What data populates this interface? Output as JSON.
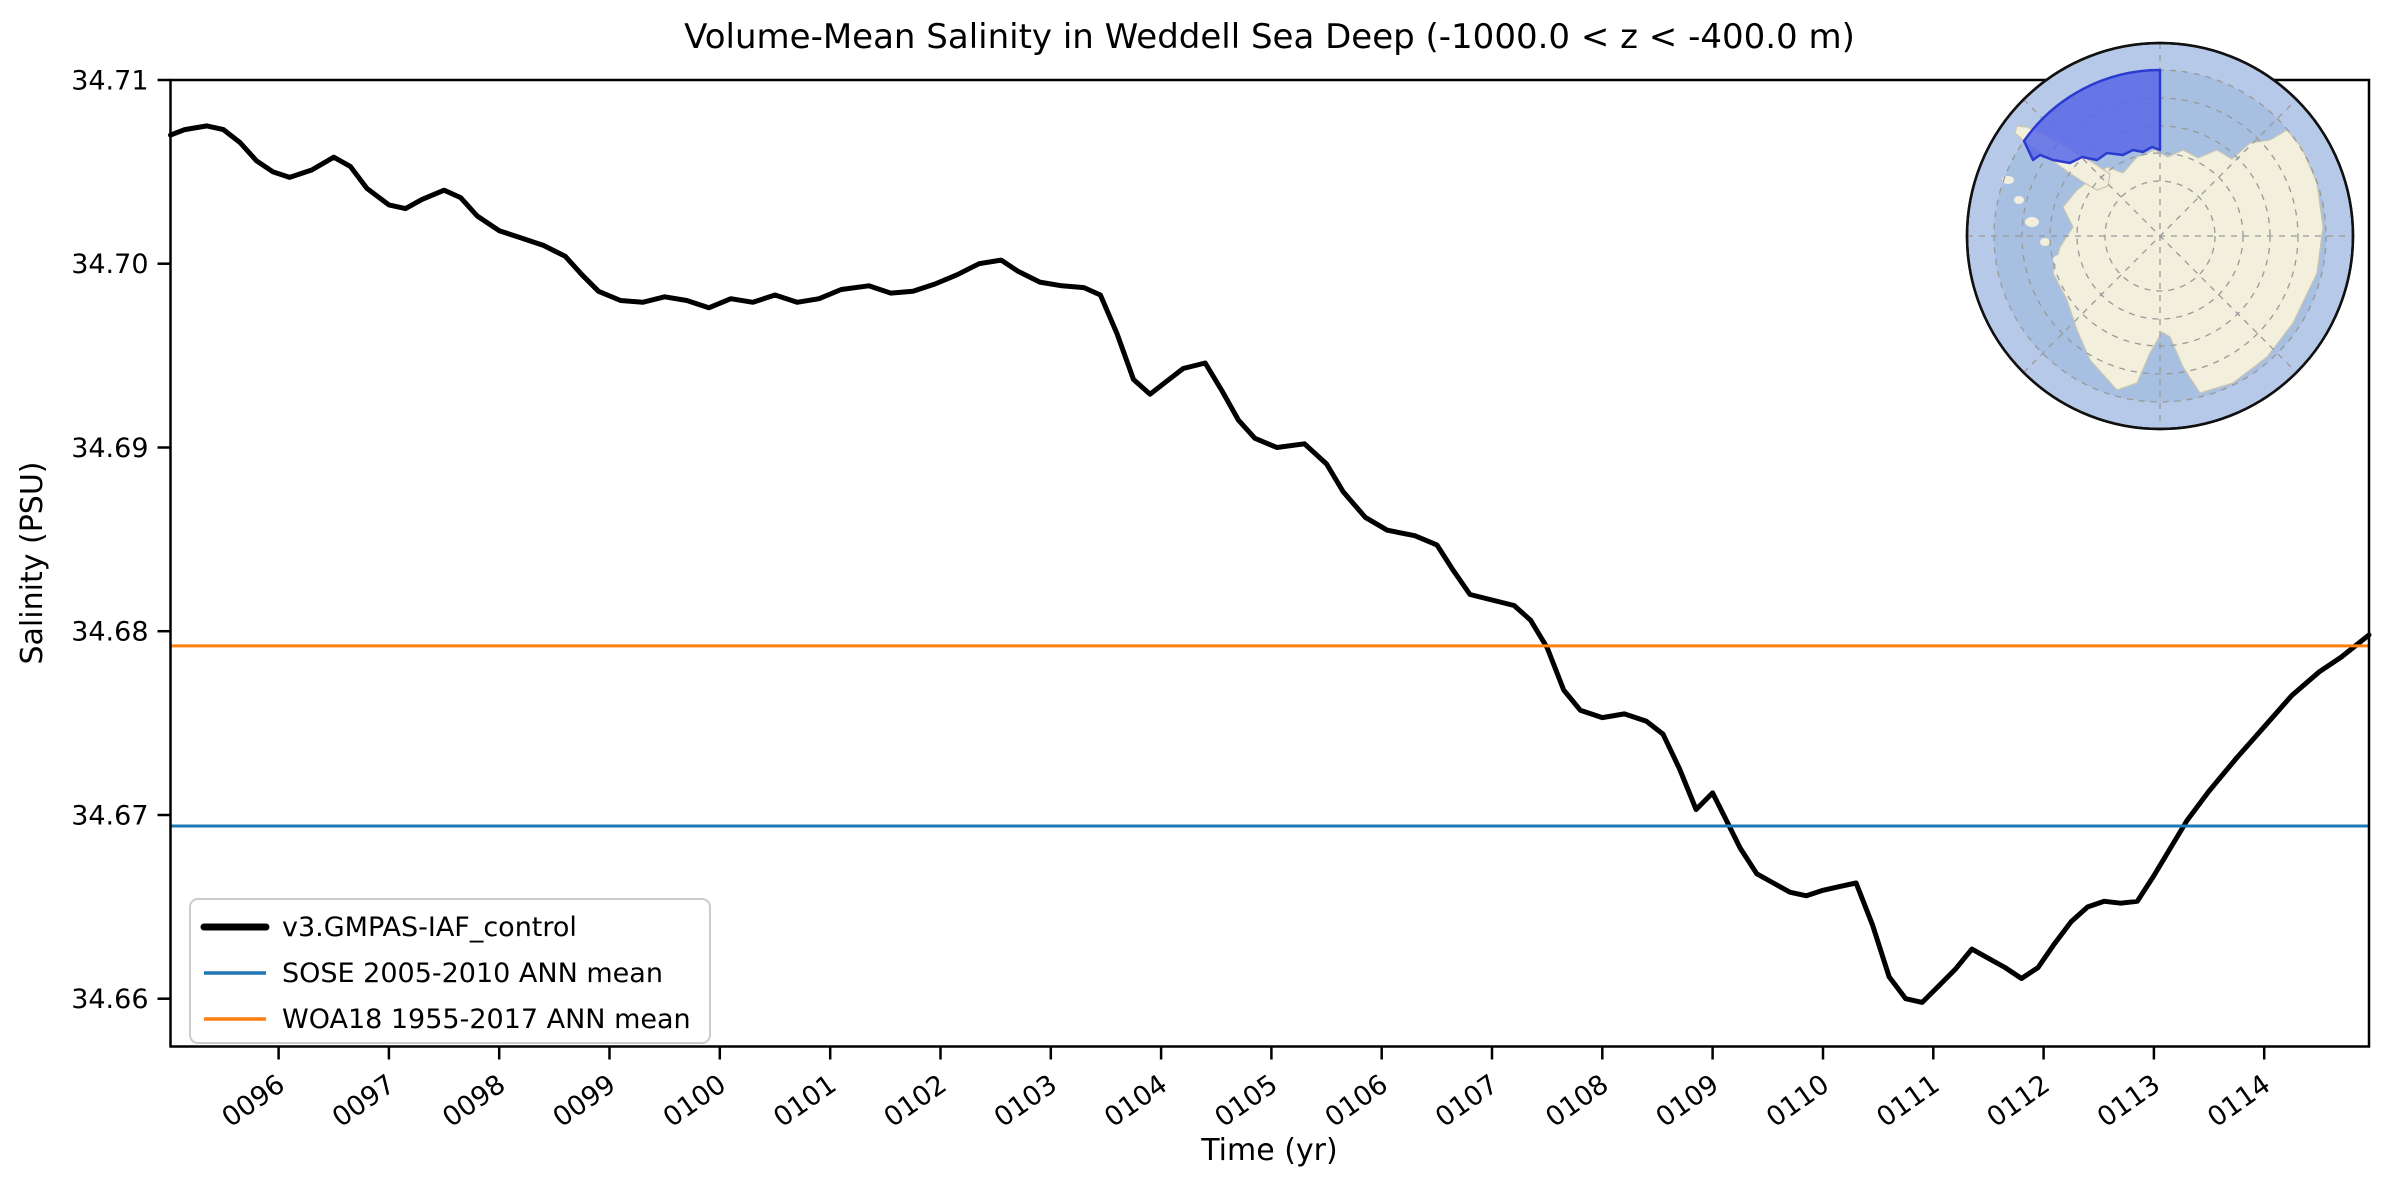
{
  "chart_data": {
    "type": "line",
    "title": "Volume-Mean Salinity in Weddell Sea Deep (-1000.0 < z < -400.0 m)",
    "xlabel": "Time (yr)",
    "ylabel": "Salinity (PSU)",
    "xlim": [
      95.02,
      114.95
    ],
    "ylim": [
      34.6574,
      34.71
    ],
    "grid": false,
    "legend_position": "lower left",
    "x_ticks": [
      {
        "value": 96,
        "label": "0096"
      },
      {
        "value": 97,
        "label": "0097"
      },
      {
        "value": 98,
        "label": "0098"
      },
      {
        "value": 99,
        "label": "0099"
      },
      {
        "value": 100,
        "label": "0100"
      },
      {
        "value": 101,
        "label": "0101"
      },
      {
        "value": 102,
        "label": "0102"
      },
      {
        "value": 103,
        "label": "0103"
      },
      {
        "value": 104,
        "label": "0104"
      },
      {
        "value": 105,
        "label": "0105"
      },
      {
        "value": 106,
        "label": "0106"
      },
      {
        "value": 107,
        "label": "0107"
      },
      {
        "value": 108,
        "label": "0108"
      },
      {
        "value": 109,
        "label": "0109"
      },
      {
        "value": 110,
        "label": "0110"
      },
      {
        "value": 111,
        "label": "0111"
      },
      {
        "value": 112,
        "label": "0112"
      },
      {
        "value": 113,
        "label": "0113"
      },
      {
        "value": 114,
        "label": "0114"
      }
    ],
    "y_ticks": [
      {
        "value": 34.66,
        "label": "34.66"
      },
      {
        "value": 34.67,
        "label": "34.67"
      },
      {
        "value": 34.68,
        "label": "34.68"
      },
      {
        "value": 34.69,
        "label": "34.69"
      },
      {
        "value": 34.7,
        "label": "34.70"
      },
      {
        "value": 34.71,
        "label": "34.71"
      }
    ],
    "series": [
      {
        "name": "v3.GMPAS-IAF_control",
        "type": "line",
        "color": "#000000",
        "points": [
          [
            95.02,
            34.707
          ],
          [
            95.15,
            34.7073
          ],
          [
            95.35,
            34.7075
          ],
          [
            95.5,
            34.7073
          ],
          [
            95.65,
            34.7066
          ],
          [
            95.8,
            34.7056
          ],
          [
            95.95,
            34.705
          ],
          [
            96.1,
            34.7047
          ],
          [
            96.3,
            34.7051
          ],
          [
            96.5,
            34.7058
          ],
          [
            96.65,
            34.7053
          ],
          [
            96.8,
            34.7041
          ],
          [
            97.0,
            34.7032
          ],
          [
            97.15,
            34.703
          ],
          [
            97.3,
            34.7035
          ],
          [
            97.5,
            34.704
          ],
          [
            97.65,
            34.7036
          ],
          [
            97.8,
            34.7026
          ],
          [
            98.0,
            34.7018
          ],
          [
            98.2,
            34.7014
          ],
          [
            98.4,
            34.701
          ],
          [
            98.6,
            34.7004
          ],
          [
            98.75,
            34.6994
          ],
          [
            98.9,
            34.6985
          ],
          [
            99.1,
            34.698
          ],
          [
            99.3,
            34.6979
          ],
          [
            99.5,
            34.6982
          ],
          [
            99.7,
            34.698
          ],
          [
            99.9,
            34.6976
          ],
          [
            100.1,
            34.6981
          ],
          [
            100.3,
            34.6979
          ],
          [
            100.5,
            34.6983
          ],
          [
            100.7,
            34.6979
          ],
          [
            100.9,
            34.6981
          ],
          [
            101.1,
            34.6986
          ],
          [
            101.35,
            34.6988
          ],
          [
            101.55,
            34.6984
          ],
          [
            101.75,
            34.6985
          ],
          [
            101.95,
            34.6989
          ],
          [
            102.15,
            34.6994
          ],
          [
            102.35,
            34.7
          ],
          [
            102.55,
            34.7002
          ],
          [
            102.7,
            34.6996
          ],
          [
            102.9,
            34.699
          ],
          [
            103.1,
            34.6988
          ],
          [
            103.3,
            34.6987
          ],
          [
            103.45,
            34.6983
          ],
          [
            103.6,
            34.6962
          ],
          [
            103.75,
            34.6937
          ],
          [
            103.9,
            34.6929
          ],
          [
            104.05,
            34.6936
          ],
          [
            104.2,
            34.6943
          ],
          [
            104.4,
            34.6946
          ],
          [
            104.55,
            34.6931
          ],
          [
            104.7,
            34.6915
          ],
          [
            104.85,
            34.6905
          ],
          [
            105.05,
            34.69
          ],
          [
            105.3,
            34.6902
          ],
          [
            105.5,
            34.6891
          ],
          [
            105.65,
            34.6876
          ],
          [
            105.85,
            34.6862
          ],
          [
            106.05,
            34.6855
          ],
          [
            106.3,
            34.6852
          ],
          [
            106.5,
            34.6847
          ],
          [
            106.65,
            34.6833
          ],
          [
            106.8,
            34.682
          ],
          [
            107.0,
            34.6817
          ],
          [
            107.2,
            34.6814
          ],
          [
            107.35,
            34.6806
          ],
          [
            107.5,
            34.6791
          ],
          [
            107.65,
            34.6768
          ],
          [
            107.8,
            34.6757
          ],
          [
            108.0,
            34.6753
          ],
          [
            108.2,
            34.6755
          ],
          [
            108.4,
            34.6751
          ],
          [
            108.55,
            34.6744
          ],
          [
            108.7,
            34.6725
          ],
          [
            108.85,
            34.6703
          ],
          [
            109.0,
            34.6712
          ],
          [
            109.1,
            34.67
          ],
          [
            109.25,
            34.6682
          ],
          [
            109.4,
            34.6668
          ],
          [
            109.55,
            34.6663
          ],
          [
            109.7,
            34.6658
          ],
          [
            109.85,
            34.6656
          ],
          [
            110.0,
            34.6659
          ],
          [
            110.15,
            34.6661
          ],
          [
            110.3,
            34.6663
          ],
          [
            110.45,
            34.664
          ],
          [
            110.6,
            34.6612
          ],
          [
            110.75,
            34.66
          ],
          [
            110.9,
            34.6598
          ],
          [
            111.05,
            34.6607
          ],
          [
            111.2,
            34.6616
          ],
          [
            111.35,
            34.6627
          ],
          [
            111.5,
            34.6622
          ],
          [
            111.65,
            34.6617
          ],
          [
            111.8,
            34.6611
          ],
          [
            111.95,
            34.6617
          ],
          [
            112.1,
            34.663
          ],
          [
            112.25,
            34.6642
          ],
          [
            112.4,
            34.665
          ],
          [
            112.55,
            34.6653
          ],
          [
            112.7,
            34.6652
          ],
          [
            112.85,
            34.6653
          ],
          [
            113.0,
            34.6667
          ],
          [
            113.15,
            34.6682
          ],
          [
            113.3,
            34.6697
          ],
          [
            113.5,
            34.6713
          ],
          [
            113.75,
            34.6731
          ],
          [
            114.0,
            34.6748
          ],
          [
            114.25,
            34.6765
          ],
          [
            114.5,
            34.6778
          ],
          [
            114.7,
            34.6786
          ],
          [
            114.95,
            34.6798
          ]
        ]
      },
      {
        "name": "SOSE 2005-2010 ANN mean",
        "type": "hline",
        "color": "#1f77b4",
        "value": 34.6694
      },
      {
        "name": "WOA18 1955-2017 ANN mean",
        "type": "hline",
        "color": "#ff7f0e",
        "value": 34.6792
      }
    ]
  },
  "inset_map": {
    "description": "South polar stereographic globe of Antarctica with the Weddell Sea analysis region highlighted",
    "colors": {
      "ocean": "#a7bfe0",
      "outer_ocean": "#b6c9e8",
      "land": "#f2efdc",
      "coast": "#c9c6b2",
      "region_fill": "#5a68e8",
      "region_edge": "#2b3bd0",
      "graticule": "#999999",
      "rim": "#111111"
    }
  }
}
